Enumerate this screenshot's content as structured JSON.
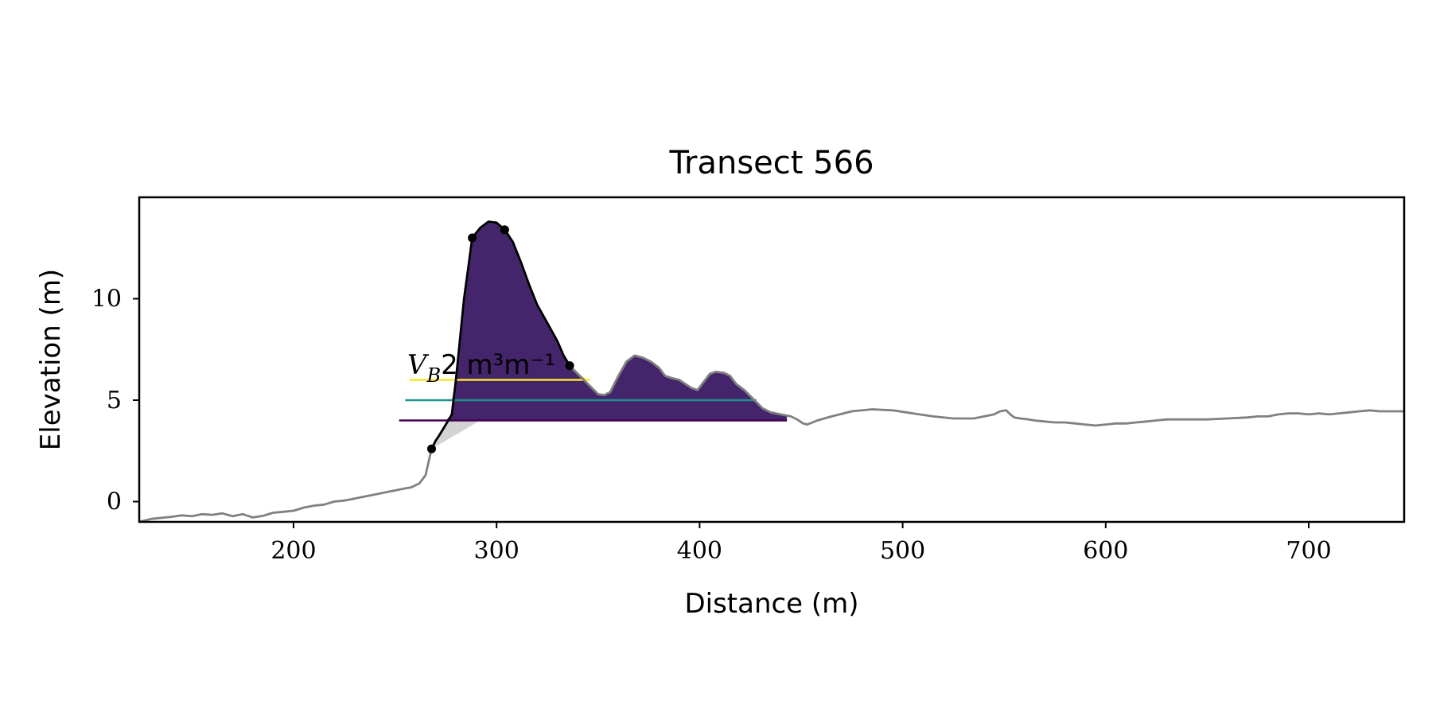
{
  "chart_data": {
    "type": "line",
    "title": "Transect 566",
    "xlabel": "Distance (m)",
    "ylabel": "Elevation (m)",
    "xlim": [
      124,
      747
    ],
    "ylim": [
      -1,
      15
    ],
    "xticks": [
      200,
      300,
      400,
      500,
      600,
      700
    ],
    "yticks": [
      0,
      5,
      10
    ],
    "xtick_labels": [
      "200",
      "300",
      "400",
      "500",
      "600",
      "700"
    ],
    "ytick_labels": [
      "0",
      "5",
      "10"
    ],
    "grid": false,
    "annotation": {
      "label_var": "V",
      "label_sub": "B",
      "label_tail": "2 m³m⁻¹",
      "x": 256,
      "y": 6.3
    },
    "colors": {
      "profile": "#808080",
      "dune": "#000000",
      "level_high": "#fde725",
      "level_mid": "#21a585",
      "level_low": "#44256b",
      "level_mid_line": "#21918c",
      "level_low_line": "#440154",
      "toe_wedge": "#d3d3d3"
    },
    "series": [
      {
        "values": [
          [
            124,
            -1.0
          ],
          [
            130,
            -0.85
          ],
          [
            140,
            -0.75
          ],
          [
            145,
            -0.68
          ],
          [
            150,
            -0.72
          ],
          [
            155,
            -0.62
          ],
          [
            160,
            -0.65
          ],
          [
            165,
            -0.58
          ],
          [
            170,
            -0.72
          ],
          [
            175,
            -0.62
          ],
          [
            180,
            -0.78
          ],
          [
            185,
            -0.7
          ],
          [
            190,
            -0.55
          ],
          [
            195,
            -0.5
          ],
          [
            200,
            -0.45
          ],
          [
            205,
            -0.3
          ],
          [
            210,
            -0.2
          ],
          [
            215,
            -0.15
          ],
          [
            220,
            0.0
          ],
          [
            225,
            0.05
          ],
          [
            230,
            0.15
          ],
          [
            235,
            0.25
          ],
          [
            240,
            0.35
          ],
          [
            245,
            0.45
          ],
          [
            250,
            0.55
          ],
          [
            255,
            0.65
          ],
          [
            258,
            0.7
          ],
          [
            262,
            0.9
          ],
          [
            265,
            1.3
          ],
          [
            268,
            2.6
          ],
          [
            270,
            3.0
          ],
          [
            272,
            3.3
          ],
          [
            275,
            3.8
          ],
          [
            278,
            4.3
          ],
          [
            280,
            6.0
          ],
          [
            282,
            8.0
          ],
          [
            284,
            10.0
          ],
          [
            286,
            11.5
          ],
          [
            288,
            13.0
          ],
          [
            292,
            13.5
          ],
          [
            296,
            13.8
          ],
          [
            300,
            13.75
          ],
          [
            304,
            13.4
          ],
          [
            308,
            12.8
          ],
          [
            312,
            11.8
          ],
          [
            316,
            10.7
          ],
          [
            320,
            9.7
          ],
          [
            325,
            8.8
          ],
          [
            330,
            7.9
          ],
          [
            333,
            7.2
          ],
          [
            336,
            6.7
          ],
          [
            340,
            6.3
          ],
          [
            345,
            5.8
          ],
          [
            350,
            5.3
          ],
          [
            353,
            5.25
          ],
          [
            356,
            5.4
          ],
          [
            360,
            6.2
          ],
          [
            364,
            6.9
          ],
          [
            368,
            7.2
          ],
          [
            372,
            7.1
          ],
          [
            376,
            6.9
          ],
          [
            380,
            6.6
          ],
          [
            383,
            6.2
          ],
          [
            386,
            6.1
          ],
          [
            390,
            6.0
          ],
          [
            393,
            5.8
          ],
          [
            396,
            5.6
          ],
          [
            399,
            5.5
          ],
          [
            402,
            5.9
          ],
          [
            405,
            6.3
          ],
          [
            408,
            6.4
          ],
          [
            412,
            6.35
          ],
          [
            415,
            6.2
          ],
          [
            418,
            5.8
          ],
          [
            422,
            5.5
          ],
          [
            425,
            5.2
          ],
          [
            428,
            4.9
          ],
          [
            431,
            4.6
          ],
          [
            435,
            4.4
          ],
          [
            440,
            4.3
          ],
          [
            445,
            4.2
          ],
          [
            448,
            4.05
          ],
          [
            451,
            3.85
          ],
          [
            453,
            3.8
          ],
          [
            458,
            4.0
          ],
          [
            465,
            4.2
          ],
          [
            475,
            4.45
          ],
          [
            485,
            4.55
          ],
          [
            495,
            4.5
          ],
          [
            505,
            4.35
          ],
          [
            515,
            4.2
          ],
          [
            525,
            4.1
          ],
          [
            535,
            4.1
          ],
          [
            545,
            4.3
          ],
          [
            548,
            4.45
          ],
          [
            551,
            4.5
          ],
          [
            553,
            4.3
          ],
          [
            555,
            4.15
          ],
          [
            558,
            4.1
          ],
          [
            562,
            4.05
          ],
          [
            565,
            4.0
          ],
          [
            570,
            3.95
          ],
          [
            575,
            3.9
          ],
          [
            580,
            3.9
          ],
          [
            585,
            3.85
          ],
          [
            590,
            3.8
          ],
          [
            595,
            3.75
          ],
          [
            600,
            3.8
          ],
          [
            605,
            3.85
          ],
          [
            610,
            3.85
          ],
          [
            615,
            3.9
          ],
          [
            620,
            3.95
          ],
          [
            625,
            4.0
          ],
          [
            630,
            4.05
          ],
          [
            640,
            4.05
          ],
          [
            650,
            4.05
          ],
          [
            660,
            4.1
          ],
          [
            670,
            4.15
          ],
          [
            675,
            4.2
          ],
          [
            680,
            4.2
          ],
          [
            685,
            4.3
          ],
          [
            690,
            4.35
          ],
          [
            695,
            4.35
          ],
          [
            700,
            4.3
          ],
          [
            705,
            4.35
          ],
          [
            710,
            4.3
          ],
          [
            715,
            4.35
          ],
          [
            720,
            4.4
          ],
          [
            725,
            4.45
          ],
          [
            730,
            4.5
          ],
          [
            735,
            4.45
          ],
          [
            740,
            4.45
          ],
          [
            747,
            4.45
          ]
        ]
      }
    ],
    "dune_segment": {
      "x_start": 268,
      "x_end": 336
    },
    "key_points": [
      {
        "x": 268,
        "y": 2.6
      },
      {
        "x": 288,
        "y": 13.0
      },
      {
        "x": 304,
        "y": 13.4
      },
      {
        "x": 336,
        "y": 6.7
      }
    ],
    "levels": [
      {
        "elevation": 6.0,
        "x_start": 288,
        "x_end": 346,
        "color": "#fde725",
        "line_from": 257
      },
      {
        "elevation": 5.0,
        "x_start": 278,
        "x_end": 428,
        "color": "#21a585",
        "line_from": 255
      },
      {
        "elevation": 4.0,
        "x_start": 275,
        "x_end": 443,
        "color": "#44256b",
        "line_from": 252
      }
    ],
    "toe_wedge": {
      "points": [
        [
          268,
          2.6
        ],
        [
          276,
          4.0
        ],
        [
          292,
          4.0
        ]
      ]
    }
  }
}
